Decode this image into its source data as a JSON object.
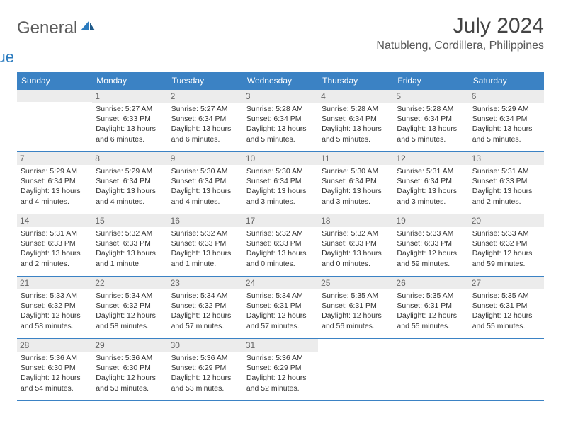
{
  "logo": {
    "general": "General",
    "blue": "Blue"
  },
  "title": "July 2024",
  "location": "Natubleng, Cordillera, Philippines",
  "colors": {
    "header_bg": "#3b82c4",
    "header_text": "#ffffff",
    "day_header_bg": "#ececec",
    "border": "#3b82c4",
    "logo_blue": "#2b7bbf",
    "logo_gray": "#5a5a5a"
  },
  "weekdays": [
    "Sunday",
    "Monday",
    "Tuesday",
    "Wednesday",
    "Thursday",
    "Friday",
    "Saturday"
  ],
  "weeks": [
    [
      {
        "day": "",
        "sunrise": "",
        "sunset": "",
        "daylight": ""
      },
      {
        "day": "1",
        "sunrise": "Sunrise: 5:27 AM",
        "sunset": "Sunset: 6:33 PM",
        "daylight": "Daylight: 13 hours and 6 minutes."
      },
      {
        "day": "2",
        "sunrise": "Sunrise: 5:27 AM",
        "sunset": "Sunset: 6:34 PM",
        "daylight": "Daylight: 13 hours and 6 minutes."
      },
      {
        "day": "3",
        "sunrise": "Sunrise: 5:28 AM",
        "sunset": "Sunset: 6:34 PM",
        "daylight": "Daylight: 13 hours and 5 minutes."
      },
      {
        "day": "4",
        "sunrise": "Sunrise: 5:28 AM",
        "sunset": "Sunset: 6:34 PM",
        "daylight": "Daylight: 13 hours and 5 minutes."
      },
      {
        "day": "5",
        "sunrise": "Sunrise: 5:28 AM",
        "sunset": "Sunset: 6:34 PM",
        "daylight": "Daylight: 13 hours and 5 minutes."
      },
      {
        "day": "6",
        "sunrise": "Sunrise: 5:29 AM",
        "sunset": "Sunset: 6:34 PM",
        "daylight": "Daylight: 13 hours and 5 minutes."
      }
    ],
    [
      {
        "day": "7",
        "sunrise": "Sunrise: 5:29 AM",
        "sunset": "Sunset: 6:34 PM",
        "daylight": "Daylight: 13 hours and 4 minutes."
      },
      {
        "day": "8",
        "sunrise": "Sunrise: 5:29 AM",
        "sunset": "Sunset: 6:34 PM",
        "daylight": "Daylight: 13 hours and 4 minutes."
      },
      {
        "day": "9",
        "sunrise": "Sunrise: 5:30 AM",
        "sunset": "Sunset: 6:34 PM",
        "daylight": "Daylight: 13 hours and 4 minutes."
      },
      {
        "day": "10",
        "sunrise": "Sunrise: 5:30 AM",
        "sunset": "Sunset: 6:34 PM",
        "daylight": "Daylight: 13 hours and 3 minutes."
      },
      {
        "day": "11",
        "sunrise": "Sunrise: 5:30 AM",
        "sunset": "Sunset: 6:34 PM",
        "daylight": "Daylight: 13 hours and 3 minutes."
      },
      {
        "day": "12",
        "sunrise": "Sunrise: 5:31 AM",
        "sunset": "Sunset: 6:34 PM",
        "daylight": "Daylight: 13 hours and 3 minutes."
      },
      {
        "day": "13",
        "sunrise": "Sunrise: 5:31 AM",
        "sunset": "Sunset: 6:33 PM",
        "daylight": "Daylight: 13 hours and 2 minutes."
      }
    ],
    [
      {
        "day": "14",
        "sunrise": "Sunrise: 5:31 AM",
        "sunset": "Sunset: 6:33 PM",
        "daylight": "Daylight: 13 hours and 2 minutes."
      },
      {
        "day": "15",
        "sunrise": "Sunrise: 5:32 AM",
        "sunset": "Sunset: 6:33 PM",
        "daylight": "Daylight: 13 hours and 1 minute."
      },
      {
        "day": "16",
        "sunrise": "Sunrise: 5:32 AM",
        "sunset": "Sunset: 6:33 PM",
        "daylight": "Daylight: 13 hours and 1 minute."
      },
      {
        "day": "17",
        "sunrise": "Sunrise: 5:32 AM",
        "sunset": "Sunset: 6:33 PM",
        "daylight": "Daylight: 13 hours and 0 minutes."
      },
      {
        "day": "18",
        "sunrise": "Sunrise: 5:32 AM",
        "sunset": "Sunset: 6:33 PM",
        "daylight": "Daylight: 13 hours and 0 minutes."
      },
      {
        "day": "19",
        "sunrise": "Sunrise: 5:33 AM",
        "sunset": "Sunset: 6:33 PM",
        "daylight": "Daylight: 12 hours and 59 minutes."
      },
      {
        "day": "20",
        "sunrise": "Sunrise: 5:33 AM",
        "sunset": "Sunset: 6:32 PM",
        "daylight": "Daylight: 12 hours and 59 minutes."
      }
    ],
    [
      {
        "day": "21",
        "sunrise": "Sunrise: 5:33 AM",
        "sunset": "Sunset: 6:32 PM",
        "daylight": "Daylight: 12 hours and 58 minutes."
      },
      {
        "day": "22",
        "sunrise": "Sunrise: 5:34 AM",
        "sunset": "Sunset: 6:32 PM",
        "daylight": "Daylight: 12 hours and 58 minutes."
      },
      {
        "day": "23",
        "sunrise": "Sunrise: 5:34 AM",
        "sunset": "Sunset: 6:32 PM",
        "daylight": "Daylight: 12 hours and 57 minutes."
      },
      {
        "day": "24",
        "sunrise": "Sunrise: 5:34 AM",
        "sunset": "Sunset: 6:31 PM",
        "daylight": "Daylight: 12 hours and 57 minutes."
      },
      {
        "day": "25",
        "sunrise": "Sunrise: 5:35 AM",
        "sunset": "Sunset: 6:31 PM",
        "daylight": "Daylight: 12 hours and 56 minutes."
      },
      {
        "day": "26",
        "sunrise": "Sunrise: 5:35 AM",
        "sunset": "Sunset: 6:31 PM",
        "daylight": "Daylight: 12 hours and 55 minutes."
      },
      {
        "day": "27",
        "sunrise": "Sunrise: 5:35 AM",
        "sunset": "Sunset: 6:31 PM",
        "daylight": "Daylight: 12 hours and 55 minutes."
      }
    ],
    [
      {
        "day": "28",
        "sunrise": "Sunrise: 5:36 AM",
        "sunset": "Sunset: 6:30 PM",
        "daylight": "Daylight: 12 hours and 54 minutes."
      },
      {
        "day": "29",
        "sunrise": "Sunrise: 5:36 AM",
        "sunset": "Sunset: 6:30 PM",
        "daylight": "Daylight: 12 hours and 53 minutes."
      },
      {
        "day": "30",
        "sunrise": "Sunrise: 5:36 AM",
        "sunset": "Sunset: 6:29 PM",
        "daylight": "Daylight: 12 hours and 53 minutes."
      },
      {
        "day": "31",
        "sunrise": "Sunrise: 5:36 AM",
        "sunset": "Sunset: 6:29 PM",
        "daylight": "Daylight: 12 hours and 52 minutes."
      },
      {
        "day": "",
        "sunrise": "",
        "sunset": "",
        "daylight": ""
      },
      {
        "day": "",
        "sunrise": "",
        "sunset": "",
        "daylight": ""
      },
      {
        "day": "",
        "sunrise": "",
        "sunset": "",
        "daylight": ""
      }
    ]
  ]
}
